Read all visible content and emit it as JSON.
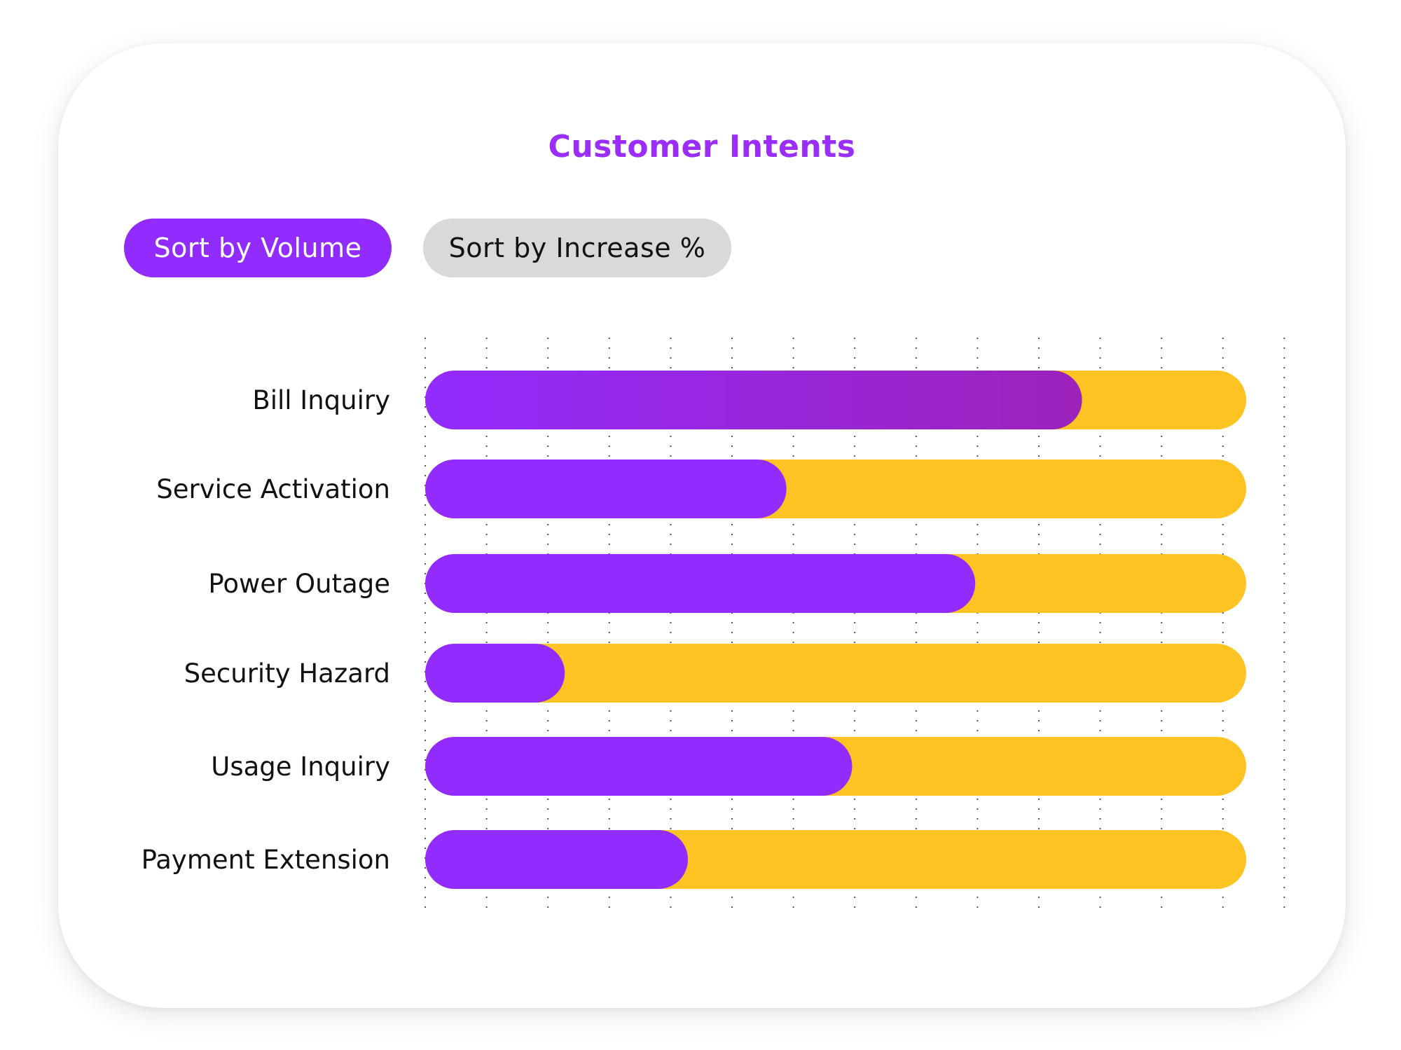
{
  "title": "Customer Intents",
  "buttons": {
    "sort_volume": "Sort by Volume",
    "sort_increase": "Sort by Increase %"
  },
  "colors": {
    "accent": "#922bfe",
    "track": "#fcc323",
    "inactive_button": "#d9d9d9"
  },
  "chart_data": {
    "type": "bar",
    "orientation": "horizontal",
    "stacked_on_track": true,
    "categories": [
      "Bill Inquiry",
      "Service Activation",
      "Power Outage",
      "Security Hazard",
      "Usage Inquiry",
      "Payment Extension"
    ],
    "values": [
      80,
      44,
      67,
      17,
      52,
      32
    ],
    "xlim": [
      0,
      100
    ],
    "grid": true,
    "grid_lines": 15
  }
}
